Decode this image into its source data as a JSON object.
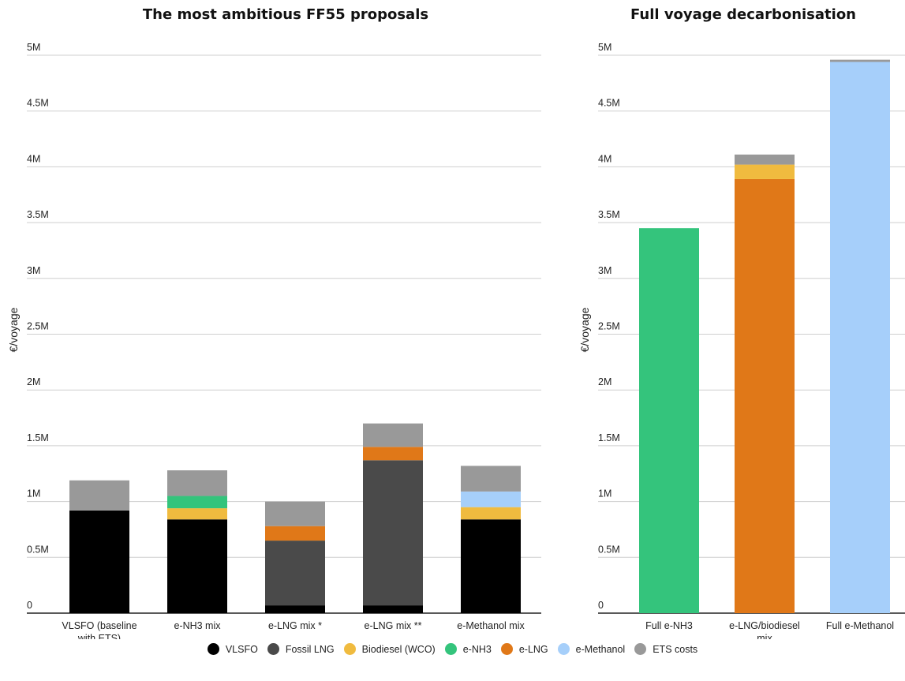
{
  "legend": [
    {
      "name": "VLSFO",
      "color": "#000000"
    },
    {
      "name": "Fossil LNG",
      "color": "#4a4a4a"
    },
    {
      "name": "Biodiesel (WCO)",
      "color": "#f0bb3f"
    },
    {
      "name": "e-NH3",
      "color": "#34c47c"
    },
    {
      "name": "e-LNG",
      "color": "#e07818"
    },
    {
      "name": "e-Methanol",
      "color": "#a6cffa"
    },
    {
      "name": "ETS costs",
      "color": "#999999"
    }
  ],
  "chart_data": [
    {
      "type": "bar",
      "stacked": true,
      "title": "The most ambitious FF55 proposals",
      "ylabel": "€/voyage",
      "ylim": [
        0,
        5000000
      ],
      "yticks": [
        0,
        500000,
        1000000,
        1500000,
        2000000,
        2500000,
        3000000,
        3500000,
        4000000,
        4500000,
        5000000
      ],
      "ytick_labels": [
        "0",
        "0.5M",
        "1M",
        "1.5M",
        "2M",
        "2.5M",
        "3M",
        "3.5M",
        "4M",
        "4.5M",
        "5M"
      ],
      "grid": true,
      "categories": [
        [
          "VLSFO (baseline",
          "with ETS)"
        ],
        [
          "e-NH3 mix"
        ],
        [
          "e-LNG mix *"
        ],
        [
          "e-LNG mix **"
        ],
        [
          "e-Methanol mix"
        ]
      ],
      "series": [
        {
          "name": "VLSFO",
          "color": "#000000",
          "values": [
            920000,
            840000,
            70000,
            70000,
            840000
          ]
        },
        {
          "name": "Fossil LNG",
          "color": "#4a4a4a",
          "values": [
            0,
            0,
            580000,
            1300000,
            0
          ]
        },
        {
          "name": "Biodiesel (WCO)",
          "color": "#f0bb3f",
          "values": [
            0,
            100000,
            0,
            0,
            110000
          ]
        },
        {
          "name": "e-NH3",
          "color": "#34c47c",
          "values": [
            0,
            110000,
            0,
            0,
            0
          ]
        },
        {
          "name": "e-LNG",
          "color": "#e07818",
          "values": [
            0,
            0,
            130000,
            120000,
            0
          ]
        },
        {
          "name": "e-Methanol",
          "color": "#a6cffa",
          "values": [
            0,
            0,
            0,
            0,
            140000
          ]
        },
        {
          "name": "ETS costs",
          "color": "#999999",
          "values": [
            270000,
            230000,
            220000,
            210000,
            230000
          ]
        }
      ]
    },
    {
      "type": "bar",
      "stacked": true,
      "title": "Full voyage decarbonisation",
      "ylabel": "€/voyage",
      "ylim": [
        0,
        5000000
      ],
      "yticks": [
        0,
        500000,
        1000000,
        1500000,
        2000000,
        2500000,
        3000000,
        3500000,
        4000000,
        4500000,
        5000000
      ],
      "ytick_labels": [
        "0",
        "0.5M",
        "1M",
        "1.5M",
        "2M",
        "2.5M",
        "3M",
        "3.5M",
        "4M",
        "4.5M",
        "5M"
      ],
      "grid": true,
      "categories": [
        [
          "Full e-NH3"
        ],
        [
          "e-LNG/biodiesel",
          "mix"
        ],
        [
          "Full e-Methanol"
        ]
      ],
      "series": [
        {
          "name": "e-NH3",
          "color": "#34c47c",
          "values": [
            3450000,
            0,
            0
          ]
        },
        {
          "name": "e-LNG",
          "color": "#e07818",
          "values": [
            0,
            3890000,
            0
          ]
        },
        {
          "name": "Biodiesel (WCO)",
          "color": "#f0bb3f",
          "values": [
            0,
            130000,
            0
          ]
        },
        {
          "name": "e-Methanol",
          "color": "#a6cffa",
          "values": [
            0,
            0,
            4940000
          ]
        },
        {
          "name": "ETS costs",
          "color": "#999999",
          "values": [
            0,
            90000,
            20000
          ]
        }
      ]
    }
  ]
}
